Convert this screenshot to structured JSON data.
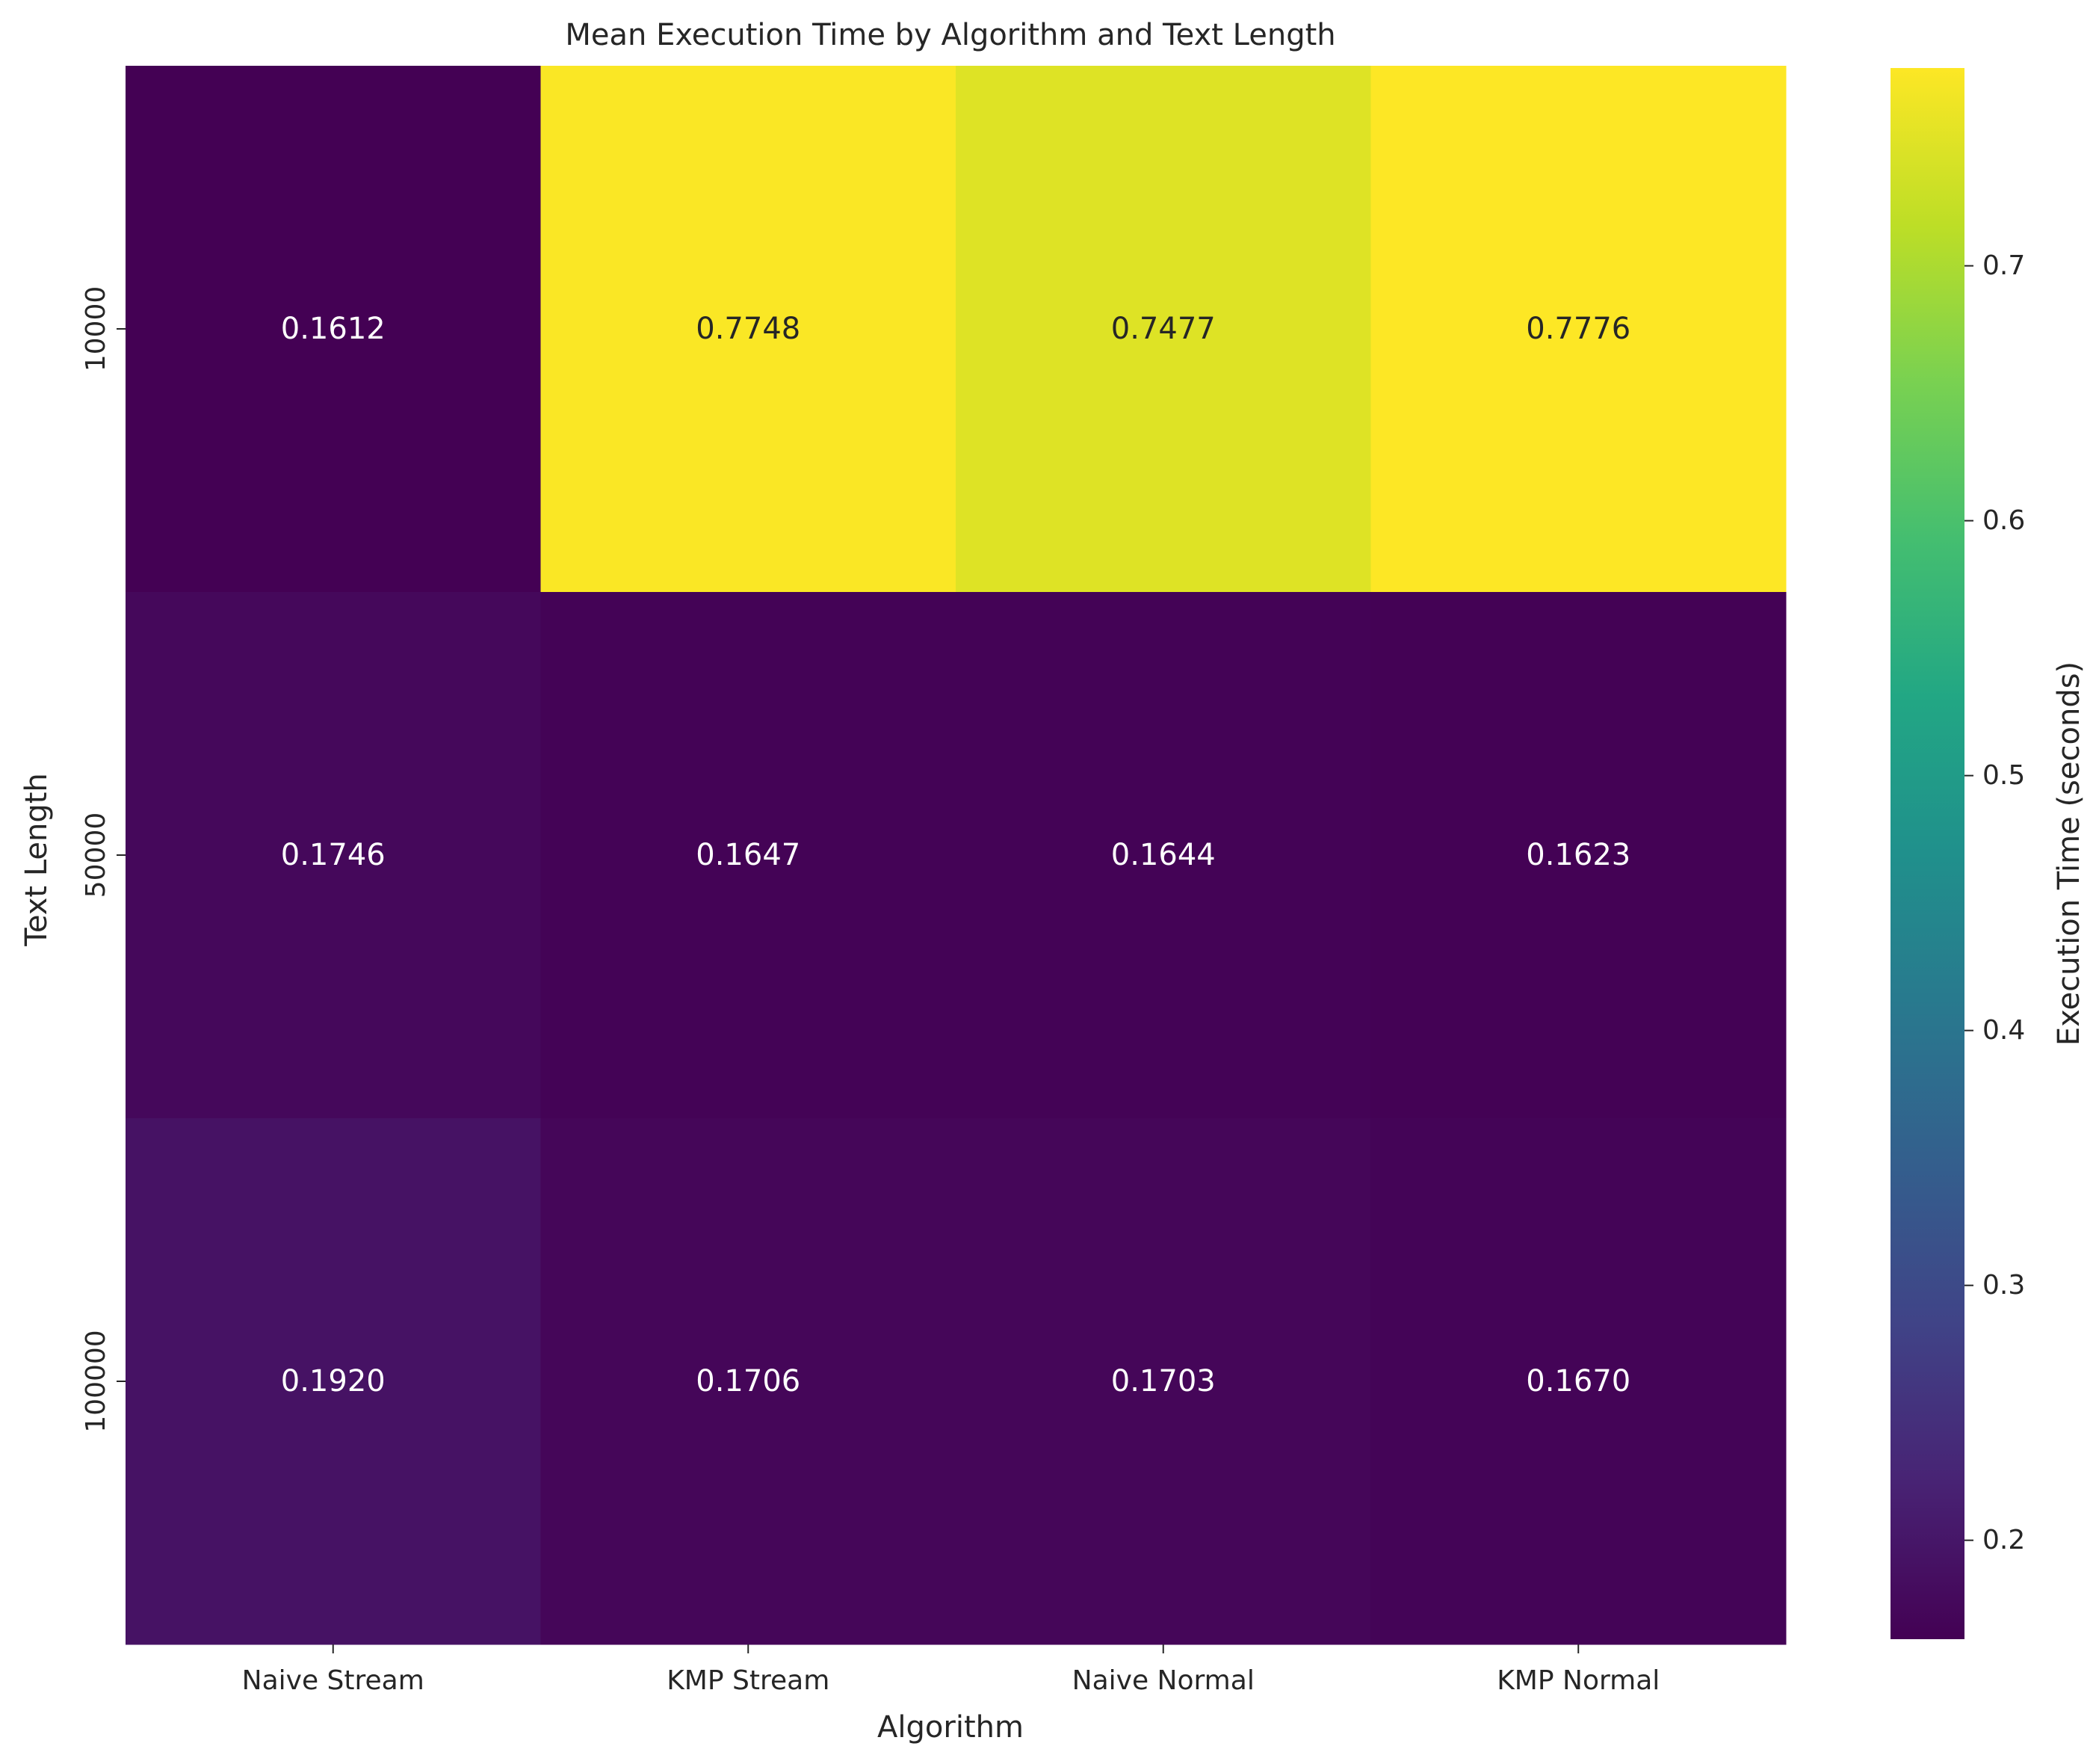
{
  "chart_data": {
    "type": "heatmap",
    "title": "Mean Execution Time by Algorithm and Text Length",
    "xlabel": "Algorithm",
    "ylabel": "Text Length",
    "x_categories": [
      "Naive Stream",
      "KMP Stream",
      "Naive Normal",
      "KMP Normal"
    ],
    "y_categories": [
      "10000",
      "50000",
      "100000"
    ],
    "values": [
      [
        0.1612,
        0.7748,
        0.7477,
        0.7776
      ],
      [
        0.1746,
        0.1647,
        0.1644,
        0.1623
      ],
      [
        0.192,
        0.1706,
        0.1703,
        0.167
      ]
    ],
    "value_labels": [
      [
        "0.1612",
        "0.7748",
        "0.7477",
        "0.7776"
      ],
      [
        "0.1746",
        "0.1647",
        "0.1644",
        "0.1623"
      ],
      [
        "0.1920",
        "0.1706",
        "0.1703",
        "0.1670"
      ]
    ],
    "colormap": "viridis",
    "color_range": [
      0.1612,
      0.7776
    ],
    "colorbar": {
      "label": "Execution Time (seconds)",
      "ticks": [
        0.2,
        0.3,
        0.4,
        0.5,
        0.6,
        0.7
      ],
      "tick_labels": [
        "0.2",
        "0.3",
        "0.4",
        "0.5",
        "0.6",
        "0.7"
      ]
    },
    "grid": false
  },
  "colors": {
    "text": "#262626",
    "annotation_dark_bg": "#ffffff",
    "annotation_light_bg": "#262626",
    "tick": "#262626"
  }
}
